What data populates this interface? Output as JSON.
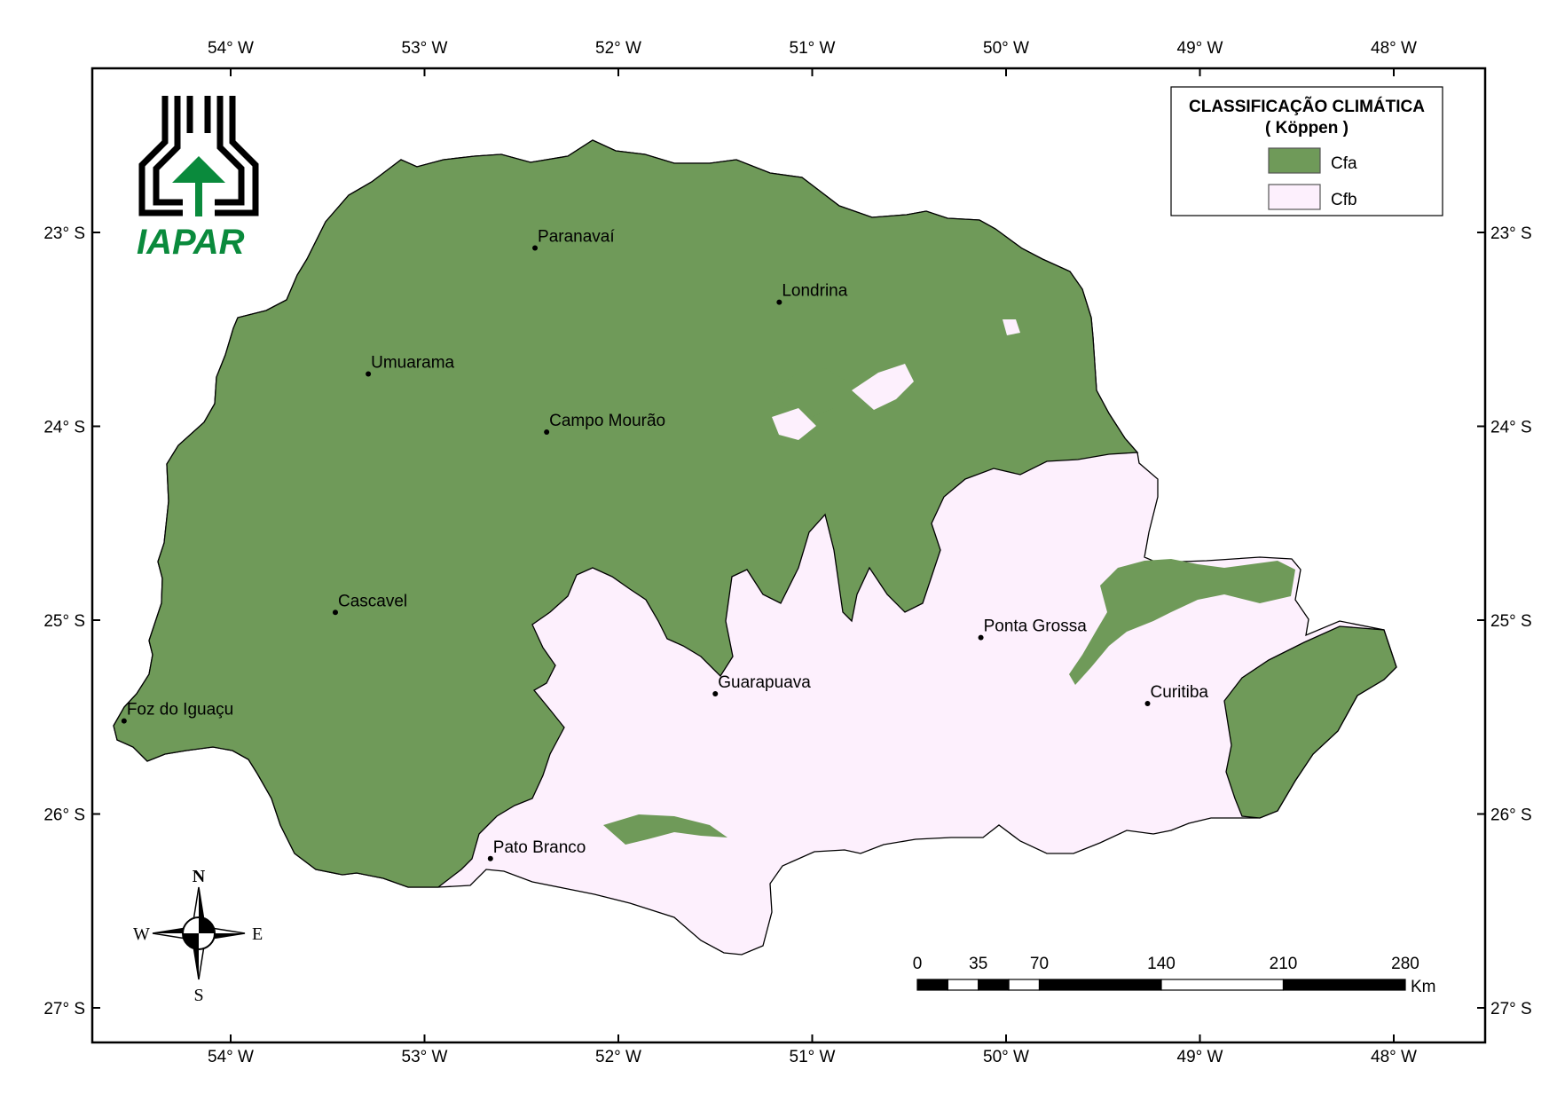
{
  "colors": {
    "cfa": "#6f9a59",
    "cfb": "#fdf0fd",
    "logo_green": "#0a8a3c",
    "frame": "#000000"
  },
  "longitude_ticks": [
    "54° W",
    "53° W",
    "52° W",
    "51° W",
    "50° W",
    "49° W",
    "48° W"
  ],
  "latitude_ticks": [
    "23° S",
    "24° S",
    "25° S",
    "26° S",
    "27° S"
  ],
  "logo": {
    "text": "IAPAR"
  },
  "legend": {
    "title_line1": "CLASSIFICAÇÃO CLIMÁTICA",
    "title_line2": "( Köppen )",
    "items": [
      {
        "label": "Cfa",
        "color": "#6f9a59"
      },
      {
        "label": "Cfb",
        "color": "#fdf0fd"
      }
    ]
  },
  "cities": [
    {
      "name": "Paranavaí",
      "lon": -52.43,
      "lat": -23.08
    },
    {
      "name": "Londrina",
      "lon": -51.17,
      "lat": -23.36
    },
    {
      "name": "Umuarama",
      "lon": -53.29,
      "lat": -23.73
    },
    {
      "name": "Campo Mourão",
      "lon": -52.37,
      "lat": -24.03
    },
    {
      "name": "Cascavel",
      "lon": -53.46,
      "lat": -24.96
    },
    {
      "name": "Ponta Grossa",
      "lon": -50.13,
      "lat": -25.09
    },
    {
      "name": "Guarapuava",
      "lon": -51.5,
      "lat": -25.38
    },
    {
      "name": "Curitiba",
      "lon": -49.27,
      "lat": -25.43
    },
    {
      "name": "Foz do Iguaçu",
      "lon": -54.55,
      "lat": -25.52
    },
    {
      "name": "Pato Branco",
      "lon": -52.66,
      "lat": -26.23
    }
  ],
  "compass": {
    "n": "N",
    "s": "S",
    "e": "E",
    "w": "W"
  },
  "scale_bar": {
    "labels": [
      "0",
      "35",
      "70",
      "140",
      "210",
      "280"
    ],
    "unit": "Km"
  }
}
